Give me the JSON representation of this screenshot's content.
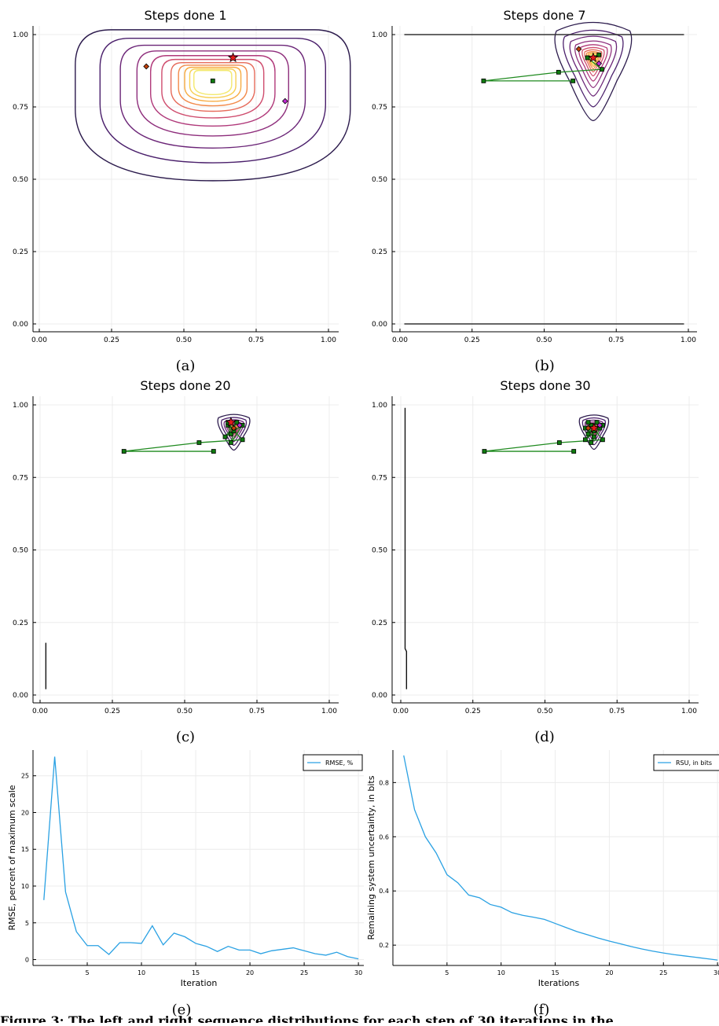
{
  "panels": {
    "a": {
      "title": "Steps done 1",
      "label": "(a)"
    },
    "b": {
      "title": "Steps done 7",
      "label": "(b)"
    },
    "c": {
      "title": "Steps done 20",
      "label": "(c)"
    },
    "d": {
      "title": "Steps done 30",
      "label": "(d)"
    },
    "e": {
      "label": "(e)"
    },
    "f": {
      "label": "(f)"
    }
  },
  "bottom_text": "Figure 3: The left and right sequence distributions for each step of 30 iterations in the",
  "colors": {
    "contour_scale": [
      "#2b1a4c",
      "#4a1f6b",
      "#6b2577",
      "#8e2e7c",
      "#b0397a",
      "#cf4d6e",
      "#e66b5b",
      "#f28a4a",
      "#f7ab42",
      "#f7cf55",
      "#f3e96e"
    ],
    "path": "#1f8a1f",
    "marker_fill": "#0f7a0f",
    "estimate_star": "#e31a1c",
    "diamond_a": "#c2410c",
    "diamond_b": "#c026d3",
    "line_series": "#2aa1e3"
  },
  "chart_data": [
    {
      "type": "contour",
      "title": "Steps done 1",
      "xlim": [
        0,
        1
      ],
      "ylim": [
        0,
        1
      ],
      "xticks": [
        "0.00",
        "0.25",
        "0.50",
        "0.75",
        "1.00"
      ],
      "yticks": [
        "0.00",
        "0.25",
        "0.50",
        "0.75",
        "1.00"
      ],
      "contour_center": [
        0.6,
        0.84
      ],
      "path": [
        [
          0.6,
          0.84
        ]
      ],
      "star": [
        0.67,
        0.92
      ],
      "diamonds": [
        [
          0.37,
          0.89
        ],
        [
          0.85,
          0.77
        ]
      ]
    },
    {
      "type": "contour",
      "title": "Steps done 7",
      "xlim": [
        0,
        1
      ],
      "ylim": [
        0,
        1
      ],
      "xticks": [
        "0.00",
        "0.25",
        "0.50",
        "0.75",
        "1.00"
      ],
      "yticks": [
        "0.00",
        "0.25",
        "0.50",
        "0.75",
        "1.00"
      ],
      "contour_center": [
        0.67,
        0.92
      ],
      "path": [
        [
          0.6,
          0.84
        ],
        [
          0.29,
          0.84
        ],
        [
          0.55,
          0.87
        ],
        [
          0.7,
          0.88
        ],
        [
          0.65,
          0.92
        ],
        [
          0.69,
          0.93
        ]
      ],
      "star": [
        0.67,
        0.92
      ],
      "diamonds": [
        [
          0.62,
          0.95
        ],
        [
          0.69,
          0.9
        ]
      ],
      "boundary_lines_y": [
        1.0,
        0.0
      ]
    },
    {
      "type": "contour",
      "title": "Steps done 20",
      "xlim": [
        0,
        1
      ],
      "ylim": [
        0,
        1
      ],
      "xticks": [
        "0.00",
        "0.25",
        "0.50",
        "0.75",
        "1.00"
      ],
      "yticks": [
        "0.00",
        "0.25",
        "0.50",
        "0.75",
        "1.00"
      ],
      "contour_center": [
        0.67,
        0.92
      ],
      "path": [
        [
          0.6,
          0.84
        ],
        [
          0.29,
          0.84
        ],
        [
          0.55,
          0.87
        ],
        [
          0.7,
          0.88
        ],
        [
          0.65,
          0.93
        ],
        [
          0.66,
          0.9
        ],
        [
          0.68,
          0.94
        ],
        [
          0.64,
          0.89
        ],
        [
          0.7,
          0.93
        ],
        [
          0.66,
          0.87
        ],
        [
          0.67,
          0.91
        ],
        [
          0.65,
          0.94
        ]
      ],
      "star": [
        0.66,
        0.94
      ],
      "diamonds": [
        [
          0.67,
          0.92
        ],
        [
          0.69,
          0.93
        ]
      ],
      "boundary_segment": [
        [
          0.02,
          0.02
        ],
        [
          0.02,
          0.18
        ]
      ]
    },
    {
      "type": "contour",
      "title": "Steps done 30",
      "xlim": [
        0,
        1
      ],
      "ylim": [
        0,
        1
      ],
      "xticks": [
        "0.00",
        "0.25",
        "0.50",
        "0.75",
        "1.00"
      ],
      "yticks": [
        "0.00",
        "0.25",
        "0.50",
        "0.75",
        "1.00"
      ],
      "contour_center": [
        0.67,
        0.92
      ],
      "path": [
        [
          0.6,
          0.84
        ],
        [
          0.29,
          0.84
        ],
        [
          0.55,
          0.87
        ],
        [
          0.7,
          0.88
        ],
        [
          0.66,
          0.93
        ],
        [
          0.65,
          0.9
        ],
        [
          0.68,
          0.94
        ],
        [
          0.64,
          0.88
        ],
        [
          0.7,
          0.93
        ],
        [
          0.66,
          0.87
        ],
        [
          0.67,
          0.91
        ],
        [
          0.65,
          0.94
        ],
        [
          0.69,
          0.92
        ],
        [
          0.64,
          0.92
        ],
        [
          0.67,
          0.89
        ]
      ],
      "star": [
        0.67,
        0.92
      ],
      "diamonds": [
        [
          0.65,
          0.92
        ],
        [
          0.69,
          0.93
        ]
      ],
      "boundary_segment": [
        [
          0.02,
          0.02
        ],
        [
          0.02,
          0.15
        ],
        [
          0.015,
          0.16
        ],
        [
          0.015,
          0.99
        ]
      ]
    },
    {
      "type": "line",
      "xlabel": "Iteration",
      "ylabel": "RMSE, percent of maximum scale",
      "xlim": [
        0,
        30.5
      ],
      "ylim": [
        -0.8,
        28.5
      ],
      "xticks": [
        5,
        10,
        15,
        20,
        25,
        30
      ],
      "yticks": [
        0,
        5,
        10,
        15,
        20,
        25
      ],
      "legend_position": "top-right",
      "series": [
        {
          "name": "RMSE, %",
          "x": [
            1,
            2,
            3,
            4,
            5,
            6,
            7,
            8,
            9,
            10,
            11,
            12,
            13,
            14,
            15,
            16,
            17,
            18,
            19,
            20,
            21,
            22,
            23,
            24,
            25,
            26,
            27,
            28,
            29,
            30
          ],
          "values": [
            8.1,
            27.6,
            9.2,
            3.8,
            1.9,
            1.9,
            0.7,
            2.3,
            2.3,
            2.2,
            4.6,
            2.0,
            3.6,
            3.1,
            2.2,
            1.8,
            1.1,
            1.8,
            1.3,
            1.3,
            0.8,
            1.2,
            1.4,
            1.6,
            1.2,
            0.8,
            0.6,
            1.0,
            0.4,
            0.1
          ]
        }
      ]
    },
    {
      "type": "line",
      "xlabel": "Iterations",
      "ylabel": "Remaining system uncertainty, in bits",
      "xlim": [
        0,
        30.5
      ],
      "ylim": [
        0.125,
        0.92
      ],
      "xticks": [
        5,
        10,
        15,
        20,
        25,
        30
      ],
      "yticks": [
        0.2,
        0.4,
        0.6,
        0.8
      ],
      "legend_position": "top-right",
      "series": [
        {
          "name": "RSU, in bits",
          "x": [
            1,
            2,
            3,
            4,
            5,
            6,
            7,
            8,
            9,
            10,
            11,
            12,
            13,
            14,
            15,
            16,
            17,
            18,
            19,
            20,
            21,
            22,
            23,
            24,
            25,
            26,
            27,
            28,
            29,
            30
          ],
          "values": [
            0.9,
            0.7,
            0.6,
            0.54,
            0.46,
            0.43,
            0.385,
            0.375,
            0.35,
            0.34,
            0.32,
            0.31,
            0.303,
            0.295,
            0.28,
            0.265,
            0.25,
            0.238,
            0.226,
            0.215,
            0.205,
            0.195,
            0.186,
            0.178,
            0.171,
            0.165,
            0.16,
            0.155,
            0.15,
            0.145
          ]
        }
      ]
    }
  ]
}
